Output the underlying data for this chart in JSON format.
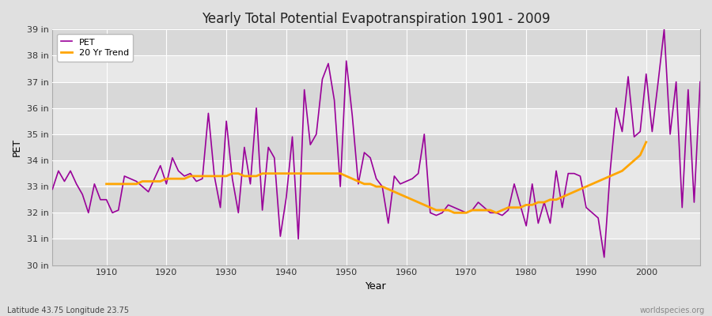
{
  "title": "Yearly Total Potential Evapotranspiration 1901 - 2009",
  "xlabel": "Year",
  "ylabel": "PET",
  "subtitle_left": "Latitude 43.75 Longitude 23.75",
  "subtitle_right": "worldspecies.org",
  "pet_color": "#990099",
  "trend_color": "#FFA500",
  "fig_bg_color": "#e0e0e0",
  "plot_bg_color": "#e8e8e8",
  "band_color_a": "#d8d8d8",
  "band_color_b": "#e8e8e8",
  "ylim": [
    30,
    39
  ],
  "xlim": [
    1901,
    2009
  ],
  "ytick_labels": [
    "30 in",
    "31 in",
    "32 in",
    "33 in",
    "34 in",
    "35 in",
    "36 in",
    "37 in",
    "38 in",
    "39 in"
  ],
  "xticks": [
    1910,
    1920,
    1930,
    1940,
    1950,
    1960,
    1970,
    1980,
    1990,
    2000
  ],
  "years": [
    1901,
    1902,
    1903,
    1904,
    1905,
    1906,
    1907,
    1908,
    1909,
    1910,
    1911,
    1912,
    1913,
    1914,
    1915,
    1916,
    1917,
    1918,
    1919,
    1920,
    1921,
    1922,
    1923,
    1924,
    1925,
    1926,
    1927,
    1928,
    1929,
    1930,
    1931,
    1932,
    1933,
    1934,
    1935,
    1936,
    1937,
    1938,
    1939,
    1940,
    1941,
    1942,
    1943,
    1944,
    1945,
    1946,
    1947,
    1948,
    1949,
    1950,
    1951,
    1952,
    1953,
    1954,
    1955,
    1956,
    1957,
    1958,
    1959,
    1960,
    1961,
    1962,
    1963,
    1964,
    1965,
    1966,
    1967,
    1968,
    1969,
    1970,
    1971,
    1972,
    1973,
    1974,
    1975,
    1976,
    1977,
    1978,
    1979,
    1980,
    1981,
    1982,
    1983,
    1984,
    1985,
    1986,
    1987,
    1988,
    1989,
    1990,
    1991,
    1992,
    1993,
    1994,
    1995,
    1996,
    1997,
    1998,
    1999,
    2000,
    2001,
    2002,
    2003,
    2004,
    2005,
    2006,
    2007,
    2008,
    2009
  ],
  "pet_values": [
    32.9,
    33.6,
    33.2,
    33.6,
    33.1,
    32.7,
    32.0,
    33.1,
    32.5,
    32.5,
    32.0,
    32.1,
    33.4,
    33.3,
    33.2,
    33.0,
    32.8,
    33.3,
    33.8,
    33.1,
    34.1,
    33.6,
    33.4,
    33.5,
    33.2,
    33.3,
    35.8,
    33.4,
    32.2,
    35.5,
    33.3,
    32.0,
    34.5,
    33.1,
    36.0,
    32.1,
    34.5,
    34.1,
    31.1,
    32.6,
    34.9,
    31.0,
    36.7,
    34.6,
    35.0,
    37.1,
    37.7,
    36.3,
    33.0,
    37.8,
    35.7,
    33.1,
    34.3,
    34.1,
    33.3,
    33.0,
    31.6,
    33.4,
    33.1,
    33.2,
    33.3,
    33.5,
    35.0,
    32.0,
    31.9,
    32.0,
    32.3,
    32.2,
    32.1,
    32.0,
    32.1,
    32.4,
    32.2,
    32.0,
    32.0,
    31.9,
    32.1,
    33.1,
    32.3,
    31.5,
    33.1,
    31.6,
    32.4,
    31.6,
    33.6,
    32.2,
    33.5,
    33.5,
    33.4,
    32.2,
    32.0,
    31.8,
    30.3,
    33.6,
    36.0,
    35.1,
    37.2,
    34.9,
    35.1,
    37.3,
    35.1,
    37.0,
    39.0,
    35.0,
    37.0,
    32.2,
    36.7,
    32.4,
    37.0
  ],
  "trend_years": [
    1910,
    1911,
    1912,
    1913,
    1914,
    1915,
    1916,
    1917,
    1918,
    1919,
    1920,
    1921,
    1922,
    1923,
    1924,
    1925,
    1926,
    1927,
    1928,
    1929,
    1930,
    1931,
    1932,
    1933,
    1934,
    1935,
    1936,
    1937,
    1938,
    1939,
    1940,
    1941,
    1942,
    1943,
    1944,
    1945,
    1946,
    1947,
    1948,
    1949,
    1950,
    1951,
    1952,
    1953,
    1954,
    1955,
    1956,
    1957,
    1958,
    1959,
    1960,
    1961,
    1962,
    1963,
    1964,
    1965,
    1966,
    1967,
    1968,
    1969,
    1970,
    1971,
    1972,
    1973,
    1974,
    1975,
    1976,
    1977,
    1978,
    1979,
    1980,
    1981,
    1982,
    1983,
    1984,
    1985,
    1986,
    1987,
    1988,
    1989,
    1990,
    1991,
    1992,
    1993,
    1994,
    1995,
    1996,
    1997,
    1998,
    1999,
    2000
  ],
  "trend_values": [
    33.1,
    33.1,
    33.1,
    33.1,
    33.1,
    33.1,
    33.2,
    33.2,
    33.2,
    33.2,
    33.3,
    33.3,
    33.3,
    33.3,
    33.4,
    33.4,
    33.4,
    33.4,
    33.4,
    33.4,
    33.4,
    33.5,
    33.5,
    33.4,
    33.4,
    33.4,
    33.5,
    33.5,
    33.5,
    33.5,
    33.5,
    33.5,
    33.5,
    33.5,
    33.5,
    33.5,
    33.5,
    33.5,
    33.5,
    33.5,
    33.4,
    33.3,
    33.2,
    33.1,
    33.1,
    33.0,
    33.0,
    32.9,
    32.8,
    32.7,
    32.6,
    32.5,
    32.4,
    32.3,
    32.2,
    32.1,
    32.1,
    32.1,
    32.0,
    32.0,
    32.0,
    32.1,
    32.1,
    32.1,
    32.1,
    32.0,
    32.1,
    32.2,
    32.2,
    32.2,
    32.3,
    32.3,
    32.4,
    32.4,
    32.5,
    32.5,
    32.6,
    32.7,
    32.8,
    32.9,
    33.0,
    33.1,
    33.2,
    33.3,
    33.4,
    33.5,
    33.6,
    33.8,
    34.0,
    34.2,
    34.7
  ]
}
